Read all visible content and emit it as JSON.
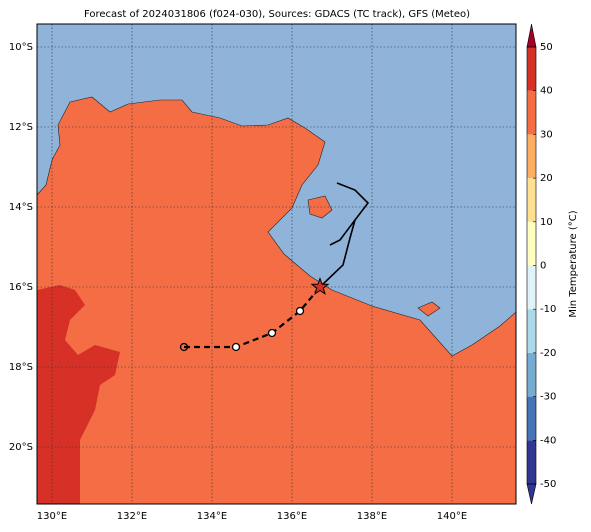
{
  "map": {
    "title": "Forecast of 2024031806 (f024-030), Sources: GDACS (TC track), GFS (Meteo)",
    "xlim": [
      129.625,
      141.6
    ],
    "ylim": [
      -21.425,
      -9.425
    ],
    "xticks": [
      {
        "value": 130,
        "label": "130°E"
      },
      {
        "value": 132,
        "label": "132°E"
      },
      {
        "value": 134,
        "label": "134°E"
      },
      {
        "value": 136,
        "label": "136°E"
      },
      {
        "value": 138,
        "label": "138°E"
      },
      {
        "value": 140,
        "label": "140°E"
      }
    ],
    "yticks": [
      {
        "value": -10,
        "label": "10°S"
      },
      {
        "value": -12,
        "label": "12°S"
      },
      {
        "value": -14,
        "label": "14°S"
      },
      {
        "value": -16,
        "label": "16°S"
      },
      {
        "value": -18,
        "label": "18°S"
      },
      {
        "value": -20,
        "label": "20°S"
      }
    ],
    "grid": true,
    "track": {
      "x": [
        133.3,
        134.6,
        135.5,
        136.2,
        136.7
      ],
      "y": [
        -17.5,
        -17.5,
        -17.15,
        -16.6,
        -16.0
      ]
    },
    "colorbar": {
      "label": "Min Temperature (°C)",
      "lim": [
        -50,
        50
      ],
      "ticks": [
        -50,
        -40,
        -30,
        -20,
        -10,
        0,
        10,
        20,
        30,
        40,
        50
      ],
      "bounds": [
        -50,
        -40,
        -30,
        -20,
        -10,
        0,
        10,
        20,
        30,
        40,
        50
      ],
      "colors": [
        "#313695",
        "#4575b4",
        "#74add1",
        "#abd9e9",
        "#e0f3f8",
        "#ffffbf",
        "#fee090",
        "#fdae61",
        "#f46d43",
        "#d73027",
        "#a50026"
      ]
    }
  }
}
